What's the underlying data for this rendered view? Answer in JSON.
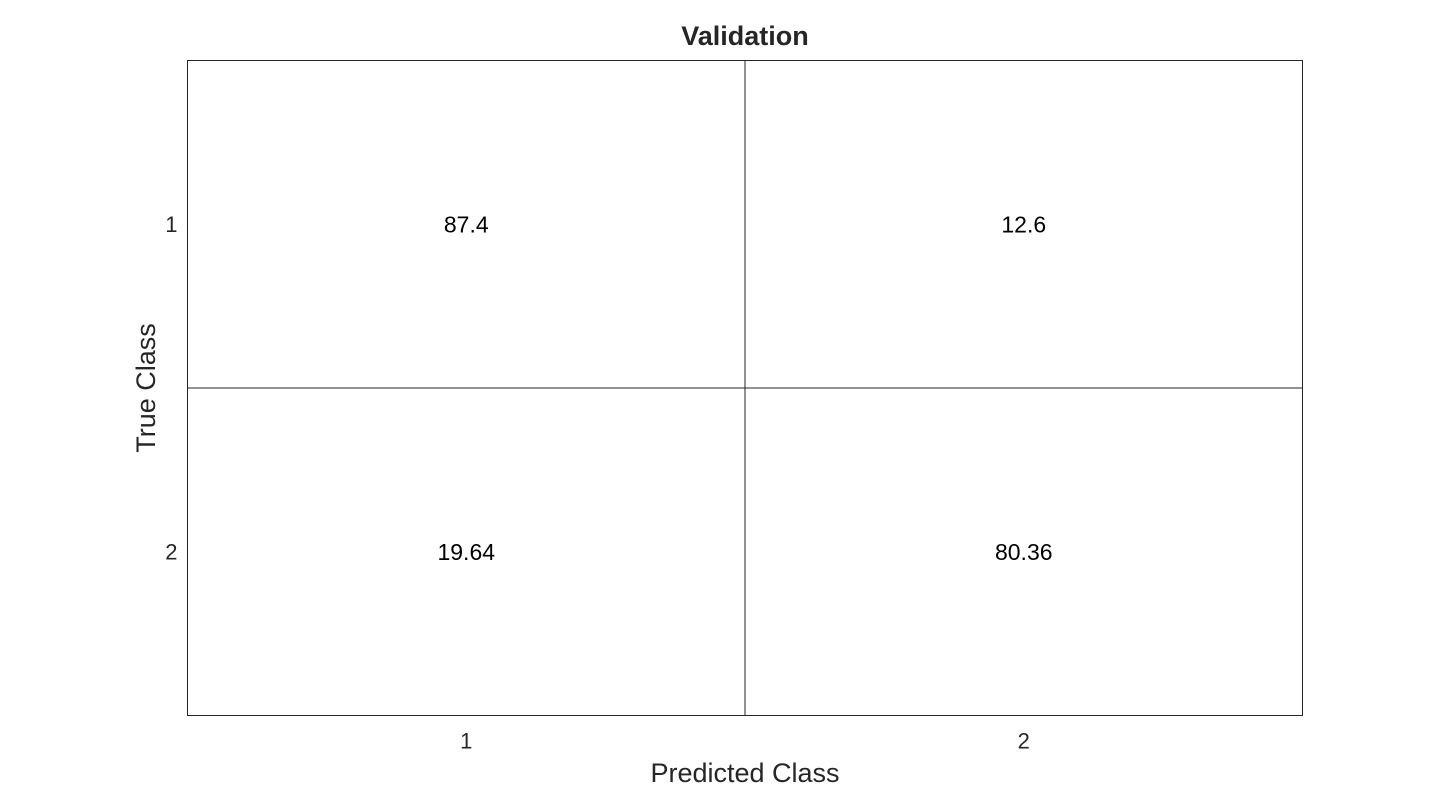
{
  "chart_data": {
    "type": "heatmap",
    "title": "Validation",
    "xlabel": "Predicted Class",
    "ylabel": "True Class",
    "x_categories": [
      "1",
      "2"
    ],
    "y_categories": [
      "1",
      "2"
    ],
    "values": [
      [
        87.4,
        12.6
      ],
      [
        19.64,
        80.36
      ]
    ],
    "cell_labels": [
      [
        "87.4",
        "12.6"
      ],
      [
        "19.64",
        "80.36"
      ]
    ],
    "grid": true,
    "legend": "none",
    "colors": {
      "cell_fill": "#ffffff",
      "grid_line": "#262626",
      "text": "#262626",
      "cell_text": "#000000"
    }
  }
}
